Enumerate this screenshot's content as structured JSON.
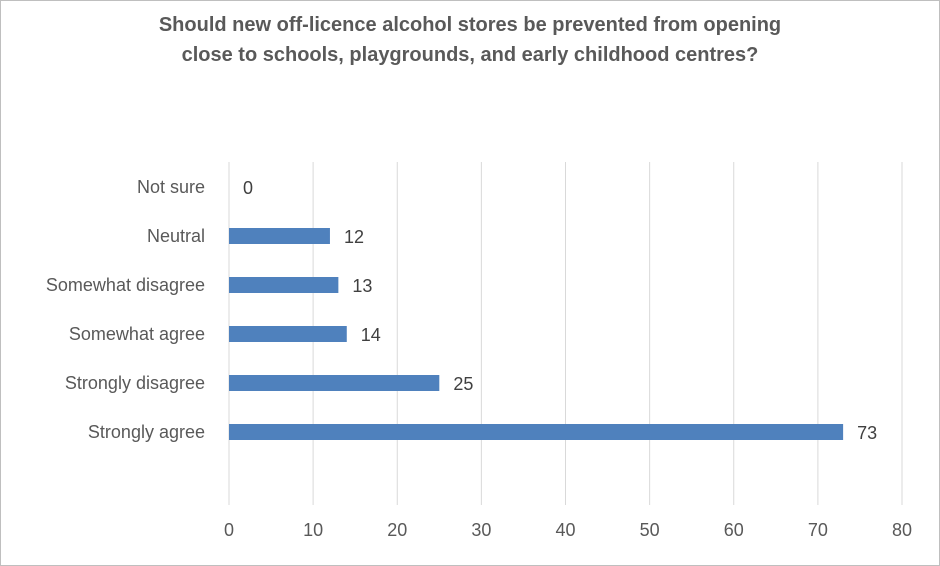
{
  "chart_data": {
    "type": "bar",
    "orientation": "horizontal",
    "title_lines": [
      "Should new off-licence alcohol stores be prevented from opening",
      "close to schools, playgrounds, and early childhood centres?"
    ],
    "categories": [
      "Not sure",
      "Neutral",
      "Somewhat disagree",
      "Somewhat agree",
      "Strongly disagree",
      "Strongly agree"
    ],
    "values": [
      0,
      12,
      13,
      14,
      25,
      73
    ],
    "xlim": [
      0,
      80
    ],
    "xticks": [
      0,
      10,
      20,
      30,
      40,
      50,
      60,
      70,
      80
    ],
    "grid": true,
    "data_labels": true,
    "bar_color": "#4f81bd",
    "gridline_color": "#d9d9d9"
  }
}
